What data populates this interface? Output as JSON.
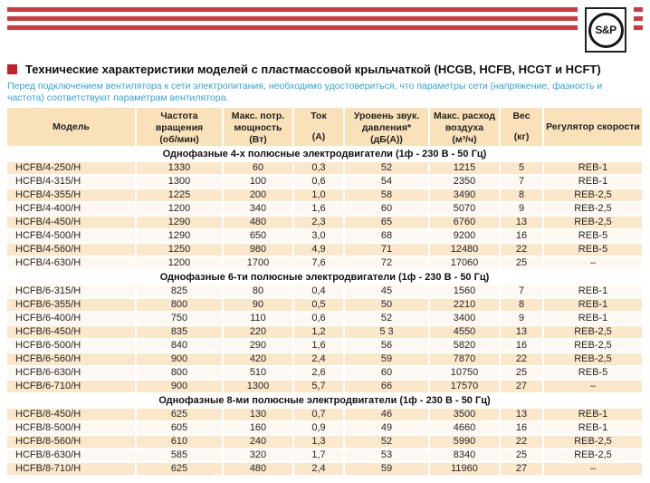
{
  "brand": {
    "logo_text": "S&P"
  },
  "title": {
    "text": "Технические характеристики моделей с пластмассовой крыльчаткой (HCGB, HCFB, HCGT и HCFT)"
  },
  "note": "Перед подключением вентилятора к сети электропитания, необходимо удостовериться, что параметры сети (напряжение, фазность и частота) соответствуют параметрам вентилятора.",
  "colors": {
    "stripe_red": "#CE393E",
    "bullet_red": "#C32129",
    "note_blue": "#2FA3DC",
    "header_peach": "#F9E1BA",
    "row_peach": "#FBE7CA",
    "row_cream": "#FDF8F1"
  },
  "table": {
    "columns": [
      {
        "key": "model",
        "label": "Модель",
        "unit": ""
      },
      {
        "key": "speed",
        "label": "Частота вращения",
        "unit": "(об/мин)"
      },
      {
        "key": "power",
        "label": "Макс. потр. мощность",
        "unit": "(Вт)"
      },
      {
        "key": "current",
        "label": "Ток",
        "unit": "(А)"
      },
      {
        "key": "noise",
        "label": "Уровень звук. давления*",
        "unit": "(дБ(А))"
      },
      {
        "key": "airflow",
        "label": "Макс. расход воздуха",
        "unit": "(м³/ч)"
      },
      {
        "key": "weight",
        "label": "Вес",
        "unit": "(кг)"
      },
      {
        "key": "controller",
        "label": "Регулятор скорости",
        "unit": ""
      }
    ],
    "sections": [
      {
        "title": "Однофазные 4-х полюсные электродвигатели (1ф - 230 В - 50 Гц)",
        "rows": [
          [
            "HCFB/4-250/H",
            "1330",
            "60",
            "0,3",
            "52",
            "1215",
            "5",
            "REB-1"
          ],
          [
            "HCFB/4-315/H",
            "1300",
            "100",
            "0,6",
            "54",
            "2350",
            "7",
            "REB-1"
          ],
          [
            "HCFB/4-355/H",
            "1225",
            "200",
            "1,0",
            "58",
            "3490",
            "8",
            "REB-2,5"
          ],
          [
            "HCFB/4-400/H",
            "1200",
            "340",
            "1,6",
            "60",
            "5070",
            "9",
            "REB-2,5"
          ],
          [
            "HCFB/4-450/H",
            "1290",
            "480",
            "2,3",
            "65",
            "6760",
            "13",
            "REB-2,5"
          ],
          [
            "HCFB/4-500/H",
            "1290",
            "650",
            "3,0",
            "68",
            "9200",
            "16",
            "REB-5"
          ],
          [
            "HCFB/4-560/H",
            "1250",
            "980",
            "4,9",
            "71",
            "12480",
            "22",
            "REB-5"
          ],
          [
            "HCFB/4-630/H",
            "1200",
            "1700",
            "7,6",
            "72",
            "17060",
            "25",
            "–"
          ]
        ]
      },
      {
        "title": "Однофазные 6-ти полюсные электродвигатели (1ф - 230 В - 50 Гц)",
        "rows": [
          [
            "HCFB/6-315/H",
            "825",
            "80",
            "0,4",
            "45",
            "1560",
            "7",
            "REB-1"
          ],
          [
            "HCFB/6-355/H",
            "800",
            "90",
            "0,5",
            "50",
            "2210",
            "8",
            "REB-1"
          ],
          [
            "HCFB/6-400/H",
            "750",
            "110",
            "0,6",
            "52",
            "3400",
            "9",
            "REB-1"
          ],
          [
            "HCFB/6-450/H",
            "835",
            "220",
            "1,2",
            "5 3",
            "4550",
            "13",
            "REB-2,5"
          ],
          [
            "HCFB/6-500/H",
            "840",
            "290",
            "1,6",
            "56",
            "5820",
            "16",
            "REB-2,5"
          ],
          [
            "HCFB/6-560/H",
            "900",
            "420",
            "2,4",
            "59",
            "7870",
            "22",
            "REB-2,5"
          ],
          [
            "HCFB/6-630/H",
            "800",
            "510",
            "2,6",
            "60",
            "10750",
            "25",
            "REB-5"
          ],
          [
            "HCFB/6-710/H",
            "900",
            "1300",
            "5,7",
            "66",
            "17570",
            "27",
            "–"
          ]
        ]
      },
      {
        "title": "Однофазные 8-ми полюсные электродвигатели (1ф - 230 В - 50 Гц)",
        "rows": [
          [
            "HCFB/8-450/H",
            "625",
            "130",
            "0,7",
            "46",
            "3500",
            "13",
            "REB-1"
          ],
          [
            "HCFB/8-500/H",
            "605",
            "160",
            "0,9",
            "49",
            "4660",
            "16",
            "REB-1"
          ],
          [
            "HCFB/8-560/H",
            "610",
            "240",
            "1,3",
            "52",
            "5990",
            "22",
            "REB-2,5"
          ],
          [
            "HCFB/8-630/H",
            "585",
            "320",
            "1,7",
            "53",
            "8340",
            "25",
            "REB-2,5"
          ],
          [
            "HCFB/8-710/H",
            "625",
            "480",
            "2,4",
            "59",
            "11960",
            "27",
            "–"
          ]
        ]
      }
    ]
  }
}
